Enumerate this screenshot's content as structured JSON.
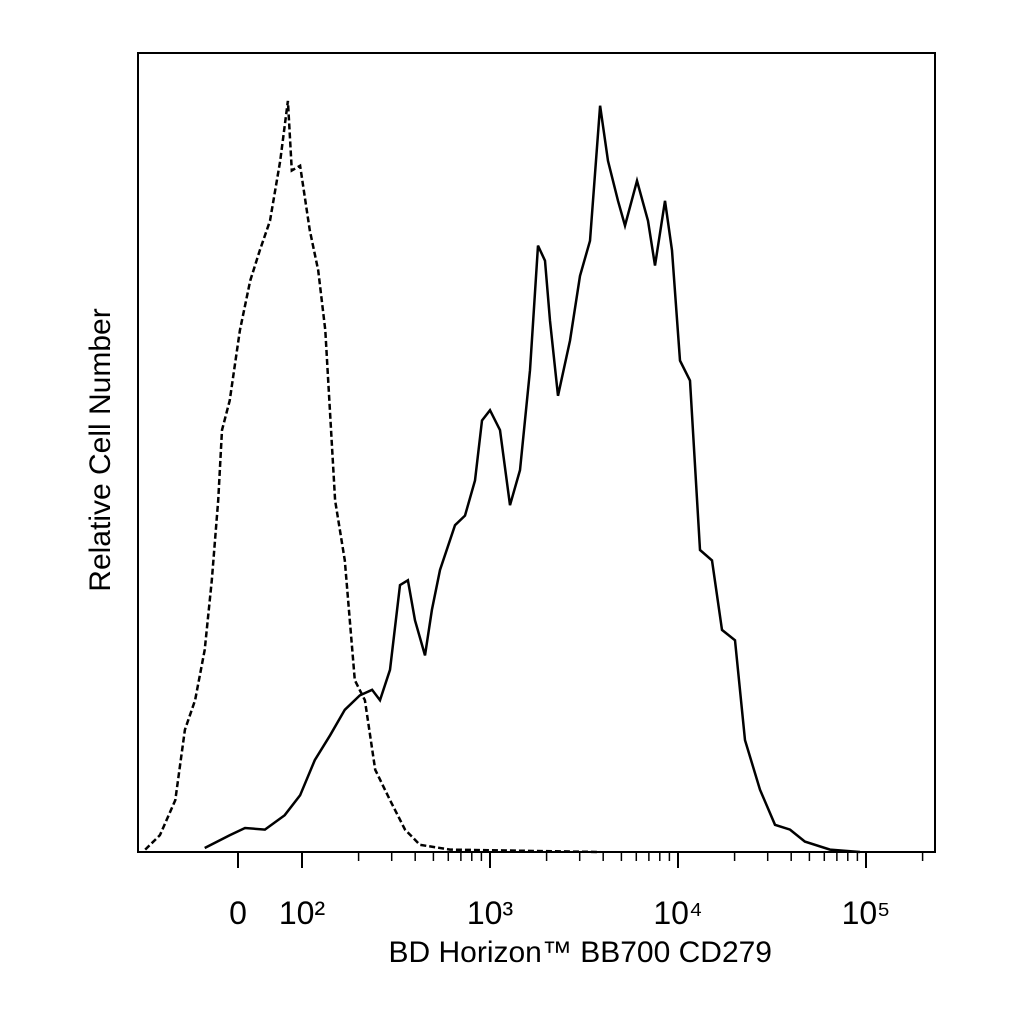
{
  "chart_data": {
    "type": "line",
    "x_label": "BD Horizon™ BB700 CD279",
    "y_label": "Relative Cell Number",
    "xscale": "biexponential",
    "xlim": [
      -156,
      263000
    ],
    "ylim": [
      0,
      100
    ],
    "xticks": [
      {
        "value": 0,
        "label": "0"
      },
      {
        "value": 100,
        "label": "10²"
      },
      {
        "value": 1000,
        "label": "10³"
      },
      {
        "value": 10000,
        "label": "10⁴"
      },
      {
        "value": 100000,
        "label": "10⁵"
      }
    ],
    "xminorticks": [
      200,
      300,
      400,
      500,
      600,
      700,
      800,
      900,
      2000,
      3000,
      4000,
      5000,
      6000,
      7000,
      8000,
      9000,
      20000,
      30000,
      40000,
      50000,
      60000,
      70000,
      80000,
      90000,
      200000
    ],
    "series": [
      {
        "color": "#000000",
        "style": "dashed",
        "x": [
          -145,
          -122,
          -98,
          -83,
          -67,
          -52,
          -41,
          -31,
          -25,
          -13,
          3,
          19,
          34,
          50,
          66,
          78,
          84,
          97,
          110,
          122,
          133,
          150,
          169,
          191,
          216,
          245,
          294,
          353,
          424,
          613,
          3850
        ],
        "values": [
          0.3,
          2.1,
          6.5,
          15.3,
          19,
          25.3,
          34,
          44,
          52.8,
          56.5,
          65.3,
          71.5,
          75.3,
          79,
          86.5,
          94,
          85.3,
          85.9,
          77.8,
          72.8,
          65.3,
          44,
          36.5,
          21.5,
          19,
          10.3,
          6.5,
          2.8,
          0.9,
          0.3,
          0
        ]
      },
      {
        "color": "#000000",
        "style": "solid",
        "x": [
          -52,
          -13,
          11,
          42,
          73,
          97,
          117,
          141,
          169,
          203,
          236,
          260,
          294,
          332,
          366,
          399,
          451,
          491,
          542,
          651,
          736,
          832,
          907,
          1000,
          1130,
          1278,
          1444,
          1632,
          1800,
          1962,
          2085,
          2300,
          2665,
          3011,
          3403,
          3850,
          4243,
          4797,
          5224,
          6052,
          6925,
          7546,
          8529,
          9293,
          10247,
          11580,
          13092,
          15170,
          17140,
          20100,
          22720,
          27290,
          32810,
          39420,
          47320,
          64360,
          92900
        ],
        "values": [
          0.5,
          2.1,
          3,
          2.8,
          4.6,
          7.1,
          11.5,
          14.6,
          17.8,
          19.6,
          20.3,
          19,
          22.8,
          33.4,
          34,
          29,
          24.6,
          30.3,
          35.3,
          40.9,
          42.1,
          46.5,
          54,
          55.3,
          52.8,
          43.4,
          47.8,
          60.3,
          75.9,
          74,
          66.5,
          57.1,
          64,
          72.1,
          76.5,
          93.4,
          86.5,
          81.5,
          78.4,
          84,
          79,
          73.4,
          81.5,
          75.3,
          61.5,
          59,
          37.8,
          36.5,
          27.8,
          26.5,
          14,
          7.8,
          3.4,
          2.8,
          1.3,
          0.3,
          0
        ]
      }
    ]
  }
}
